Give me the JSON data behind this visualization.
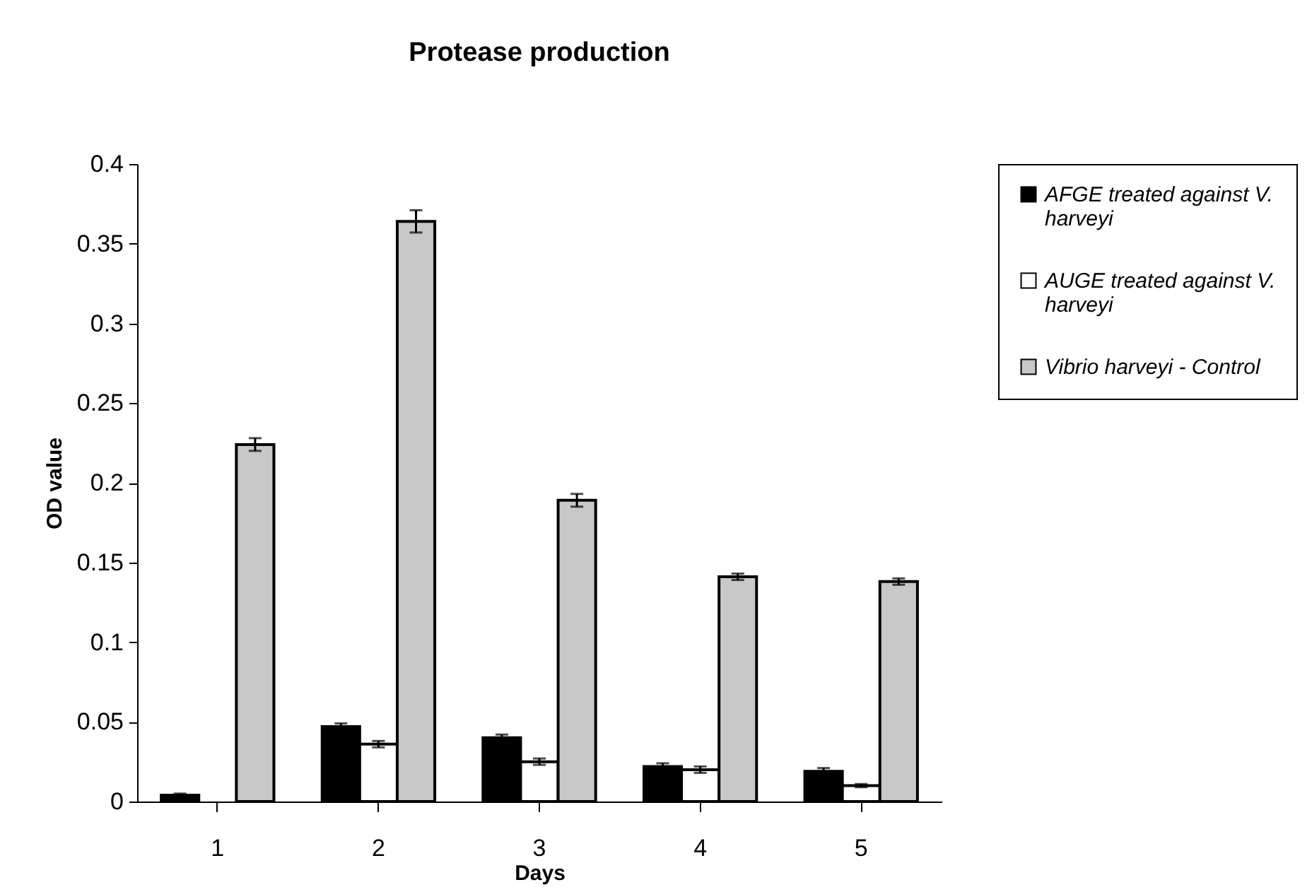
{
  "chart_data": {
    "type": "bar",
    "title": "Protease production",
    "xlabel": "Days",
    "ylabel": "OD value",
    "categories": [
      "1",
      "2",
      "3",
      "4",
      "5"
    ],
    "series": [
      {
        "name": "AFGE treated against V. harveyi",
        "color": "#000000",
        "values": [
          0.004,
          0.047,
          0.04,
          0.022,
          0.019
        ],
        "errors": [
          0.001,
          0.002,
          0.002,
          0.002,
          0.002
        ]
      },
      {
        "name": "AUGE treated against V. harveyi",
        "color": "#ffffff",
        "values": [
          0,
          0.036,
          0.025,
          0.02,
          0.01
        ],
        "errors": [
          null,
          0.002,
          0.002,
          0.002,
          0.001
        ]
      },
      {
        "name": "Vibrio harveyi - Control",
        "color": "#c8c8c8",
        "values": [
          0.224,
          0.364,
          0.189,
          0.141,
          0.138
        ],
        "errors": [
          0.004,
          0.007,
          0.004,
          0.002,
          0.002
        ]
      }
    ],
    "ylim": [
      0,
      0.4
    ],
    "yticks": [
      0,
      0.05,
      0.1,
      0.15,
      0.2,
      0.25,
      0.3,
      0.35,
      0.4
    ],
    "grid": false,
    "legend": "right"
  }
}
